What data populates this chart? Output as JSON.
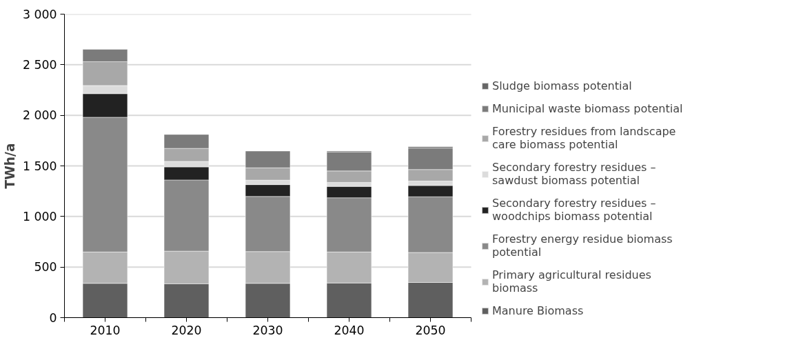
{
  "chart_data": {
    "type": "bar",
    "stacked": true,
    "ylabel": "TWh/a",
    "categories": [
      "2010",
      "2020",
      "2030",
      "2040",
      "2050"
    ],
    "series": [
      {
        "name": "Manure Biomass",
        "color": "#5f5f5f",
        "values": [
          339,
          335,
          339,
          343,
          348
        ]
      },
      {
        "name": "Primary agricultural residues biomass",
        "color": "#b3b3b3",
        "values": [
          310,
          322,
          314,
          306,
          296
        ]
      },
      {
        "name": "Forestry energy residue biomass potential",
        "color": "#898989",
        "values": [
          1332,
          704,
          545,
          536,
          551
        ]
      },
      {
        "name": "Secondary forestry residues – woodchips biomass potential",
        "color": "#222222",
        "values": [
          233,
          129,
          117,
          112,
          111
        ]
      },
      {
        "name": "Secondary forestry residues – sawdust biomass potential",
        "color": "#dcdcdc",
        "values": [
          81,
          55,
          44,
          40,
          44
        ]
      },
      {
        "name": "Forestry residues from landscape care biomass potential",
        "color": "#a8a8a8",
        "values": [
          235,
          128,
          122,
          113,
          114
        ]
      },
      {
        "name": "Municipal waste biomass potential",
        "color": "#7b7b7b",
        "values": [
          122,
          138,
          166,
          188,
          212
        ]
      },
      {
        "name": "Sludge biomass potential",
        "color": "#666666",
        "values": [
          0,
          0,
          0,
          9,
          13
        ]
      }
    ],
    "ylim": [
      0,
      3000
    ],
    "yticks": [
      {
        "value": 0,
        "label": "0"
      },
      {
        "value": 500,
        "label": "500"
      },
      {
        "value": 1000,
        "label": "1 000"
      },
      {
        "value": 1500,
        "label": "1 500"
      },
      {
        "value": 2000,
        "label": "2 000"
      },
      {
        "value": 2500,
        "label": "2 500"
      },
      {
        "value": 3000,
        "label": "3 000"
      }
    ],
    "grid": "y",
    "legend": "right"
  }
}
